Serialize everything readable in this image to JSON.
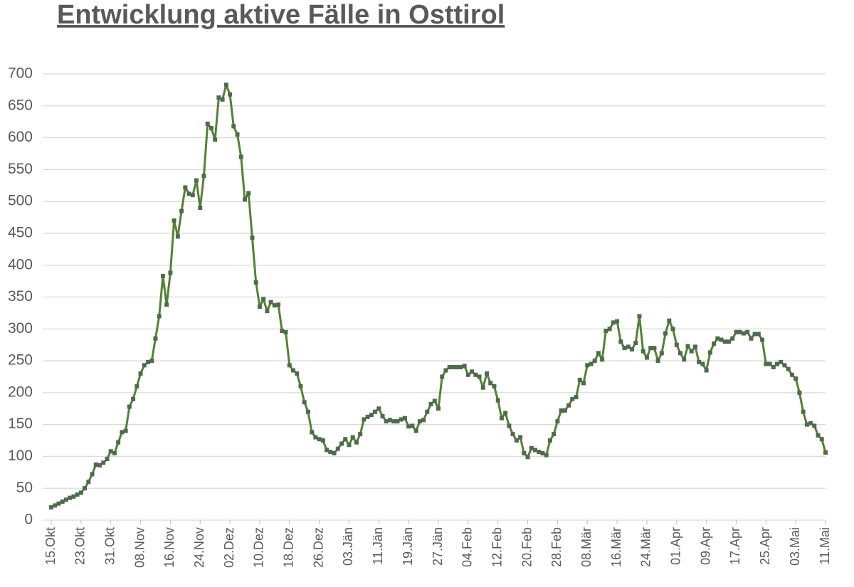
{
  "chart_data": {
    "type": "line",
    "title": "Entwicklung aktive Fälle in Osttirol",
    "categories": [
      "15.Okt",
      null,
      null,
      null,
      null,
      null,
      null,
      null,
      "23.Okt",
      null,
      null,
      null,
      null,
      null,
      null,
      null,
      "31.Okt",
      null,
      null,
      null,
      null,
      null,
      null,
      null,
      "08.Nov",
      null,
      null,
      null,
      null,
      null,
      null,
      null,
      "16.Nov",
      null,
      null,
      null,
      null,
      null,
      null,
      null,
      "24.Nov",
      null,
      null,
      null,
      null,
      null,
      null,
      null,
      "02.Dez",
      null,
      null,
      null,
      null,
      null,
      null,
      null,
      "10.Dez",
      null,
      null,
      null,
      null,
      null,
      null,
      null,
      "18.Dez",
      null,
      null,
      null,
      null,
      null,
      null,
      null,
      "26.Dez",
      null,
      null,
      null,
      null,
      null,
      null,
      null,
      "03.Jän",
      null,
      null,
      null,
      null,
      null,
      null,
      null,
      "11.Jän",
      null,
      null,
      null,
      null,
      null,
      null,
      null,
      "19.Jän",
      null,
      null,
      null,
      null,
      null,
      null,
      null,
      "27.Jän",
      null,
      null,
      null,
      null,
      null,
      null,
      null,
      "04.Feb",
      null,
      null,
      null,
      null,
      null,
      null,
      null,
      "12.Feb",
      null,
      null,
      null,
      null,
      null,
      null,
      null,
      "20.Feb",
      null,
      null,
      null,
      null,
      null,
      null,
      null,
      "28.Feb",
      null,
      null,
      null,
      null,
      null,
      null,
      null,
      "08.Mär",
      null,
      null,
      null,
      null,
      null,
      null,
      null,
      "16.Mär",
      null,
      null,
      null,
      null,
      null,
      null,
      null,
      "24.Mär",
      null,
      null,
      null,
      null,
      null,
      null,
      null,
      "01.Apr",
      null,
      null,
      null,
      null,
      null,
      null,
      null,
      "09.Apr",
      null,
      null,
      null,
      null,
      null,
      null,
      null,
      "17.Apr",
      null,
      null,
      null,
      null,
      null,
      null,
      null,
      "25.Apr",
      null,
      null,
      null,
      null,
      null,
      null,
      null,
      "03.Mai",
      null,
      null,
      null,
      null,
      null,
      null,
      null,
      "11.Mai"
    ],
    "values": [
      20,
      23,
      26,
      29,
      32,
      35,
      37,
      40,
      43,
      50,
      60,
      72,
      87,
      86,
      90,
      96,
      108,
      105,
      122,
      138,
      140,
      178,
      190,
      210,
      230,
      243,
      248,
      250,
      285,
      320,
      383,
      338,
      388,
      470,
      445,
      485,
      522,
      512,
      510,
      533,
      490,
      540,
      622,
      615,
      597,
      663,
      660,
      683,
      668,
      618,
      605,
      570,
      503,
      513,
      443,
      373,
      335,
      347,
      328,
      342,
      337,
      338,
      297,
      295,
      243,
      235,
      230,
      210,
      185,
      170,
      138,
      130,
      127,
      125,
      110,
      107,
      105,
      112,
      120,
      127,
      118,
      130,
      122,
      135,
      158,
      162,
      165,
      170,
      175,
      163,
      155,
      157,
      155,
      155,
      158,
      160,
      147,
      148,
      140,
      155,
      157,
      170,
      182,
      187,
      175,
      225,
      235,
      240,
      240,
      240,
      240,
      242,
      228,
      233,
      228,
      225,
      208,
      230,
      215,
      210,
      188,
      160,
      168,
      148,
      135,
      125,
      130,
      105,
      99,
      113,
      110,
      107,
      105,
      102,
      125,
      135,
      155,
      172,
      172,
      180,
      190,
      193,
      220,
      215,
      243,
      245,
      250,
      262,
      252,
      297,
      300,
      310,
      312,
      280,
      270,
      272,
      268,
      278,
      320,
      265,
      255,
      270,
      270,
      250,
      262,
      293,
      313,
      300,
      275,
      262,
      252,
      273,
      265,
      272,
      248,
      245,
      235,
      263,
      277,
      285,
      283,
      280,
      280,
      285,
      295,
      295,
      293,
      295,
      285,
      292,
      292,
      283,
      245,
      245,
      240,
      245,
      248,
      243,
      237,
      228,
      222,
      200,
      170,
      150,
      152,
      148,
      133,
      127,
      106
    ],
    "color": "#548235",
    "marker_color": "#4e6b4e",
    "ylim": [
      0,
      700
    ],
    "yticks": [
      0,
      50,
      100,
      150,
      200,
      250,
      300,
      350,
      400,
      450,
      500,
      550,
      600,
      650,
      700
    ],
    "grid": true
  }
}
